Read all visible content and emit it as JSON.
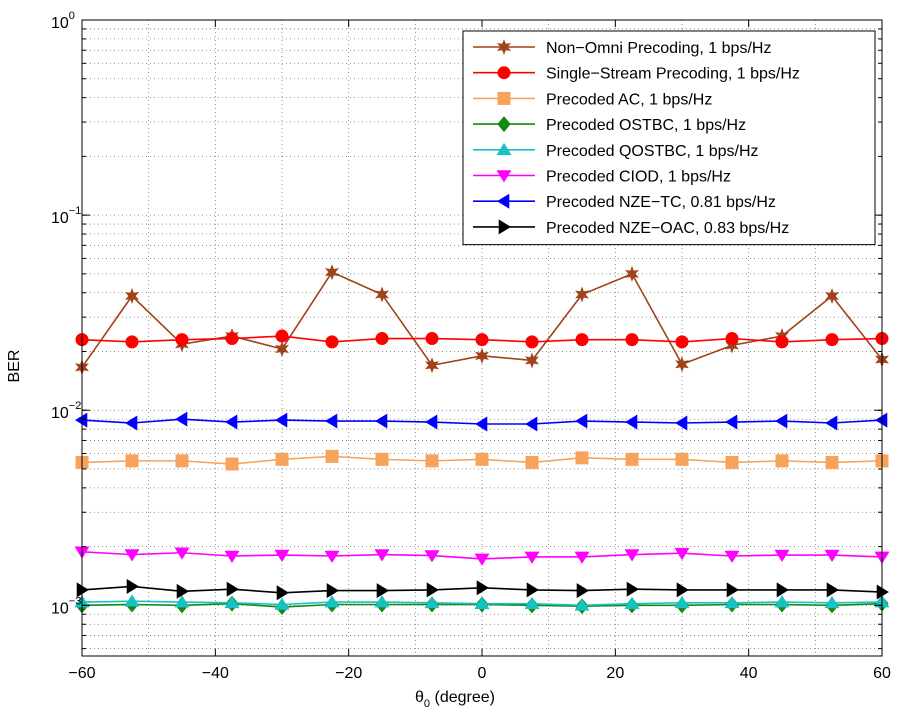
{
  "chart_data": {
    "type": "line",
    "xlabel_symbol": "θ",
    "xlabel_sub": "0",
    "xlabel_rest": " (degree)",
    "ylabel": "BER",
    "xlim": [
      -60,
      60
    ],
    "ylim": [
      0.00055,
      1
    ],
    "yscale": "log",
    "grid": true,
    "legend_position": "top-right",
    "xticks": [
      -60,
      -40,
      -20,
      0,
      20,
      40,
      60
    ],
    "xtick_labels": [
      "−60",
      "−40",
      "−20",
      "0",
      "20",
      "40",
      "60"
    ],
    "yticks": [
      {
        "value": 1,
        "base": "10",
        "exp": "0"
      },
      {
        "value": 0.1,
        "base": "10",
        "exp": "−1"
      },
      {
        "value": 0.01,
        "base": "10",
        "exp": "−2"
      },
      {
        "value": 0.001,
        "base": "10",
        "exp": "−3"
      }
    ],
    "x": [
      -60,
      -52.5,
      -45,
      -37.5,
      -30,
      -22.5,
      -15,
      -7.5,
      0,
      7.5,
      15,
      22.5,
      30,
      37.5,
      45,
      52.5,
      60
    ],
    "series": [
      {
        "name": "Non−Omni Precoding, 1 bps/Hz",
        "color": "#a0421a",
        "marker": "star",
        "values": [
          0.0166,
          0.0385,
          0.0218,
          0.024,
          0.0206,
          0.051,
          0.0392,
          0.017,
          0.019,
          0.018,
          0.0392,
          0.05,
          0.0172,
          0.0215,
          0.024,
          0.0385,
          0.0182
        ]
      },
      {
        "name": "Single−Stream Precoding, 1 bps/Hz",
        "color": "#ff0000",
        "marker": "circle",
        "values": [
          0.023,
          0.0224,
          0.023,
          0.0233,
          0.024,
          0.0224,
          0.0233,
          0.0233,
          0.023,
          0.0224,
          0.023,
          0.023,
          0.0224,
          0.0233,
          0.0224,
          0.023,
          0.0233
        ]
      },
      {
        "name": "Precoded AC, 1 bps/Hz",
        "color": "#f7a35c",
        "marker": "square",
        "values": [
          0.0054,
          0.0055,
          0.0055,
          0.0053,
          0.0056,
          0.0058,
          0.0056,
          0.0055,
          0.0056,
          0.0054,
          0.0057,
          0.0056,
          0.0056,
          0.0054,
          0.0055,
          0.0054,
          0.0055
        ]
      },
      {
        "name": "Precoded OSTBC, 1 bps/Hz",
        "color": "#138a13",
        "marker": "diamond",
        "values": [
          0.001,
          0.00101,
          0.001,
          0.00102,
          0.00098,
          0.00101,
          0.00101,
          0.00101,
          0.00101,
          0.001,
          0.00099,
          0.001,
          0.001,
          0.00101,
          0.00101,
          0.001,
          0.00102
        ]
      },
      {
        "name": "Precoded QOSTBC, 1 bps/Hz",
        "color": "#19c2c2",
        "marker": "triangle-up",
        "values": [
          0.00104,
          0.00105,
          0.00104,
          0.00103,
          0.00101,
          0.00104,
          0.00104,
          0.00103,
          0.00102,
          0.00102,
          0.001,
          0.00102,
          0.00103,
          0.00103,
          0.00104,
          0.00103,
          0.00104
        ]
      },
      {
        "name": "Precoded CIOD, 1 bps/Hz",
        "color": "#ff00ff",
        "marker": "triangle-down",
        "values": [
          0.00188,
          0.00182,
          0.00186,
          0.00179,
          0.00181,
          0.00179,
          0.00182,
          0.0018,
          0.00173,
          0.00177,
          0.00177,
          0.00182,
          0.00185,
          0.00179,
          0.00181,
          0.00181,
          0.00177
        ]
      },
      {
        "name": "Precoded NZE−TC, 0.81 bps/Hz",
        "color": "#0000ff",
        "marker": "triangle-left",
        "values": [
          0.0089,
          0.0086,
          0.009,
          0.0087,
          0.0089,
          0.0088,
          0.0088,
          0.0087,
          0.0085,
          0.0085,
          0.0088,
          0.0087,
          0.0086,
          0.0087,
          0.0088,
          0.0086,
          0.0089
        ]
      },
      {
        "name": "Precoded NZE−OAC, 0.83 bps/Hz",
        "color": "#000000",
        "marker": "triangle-right",
        "values": [
          0.0012,
          0.00125,
          0.00118,
          0.00121,
          0.00116,
          0.00119,
          0.00119,
          0.0012,
          0.00123,
          0.0012,
          0.00119,
          0.00121,
          0.0012,
          0.0012,
          0.0012,
          0.0012,
          0.00117
        ]
      }
    ]
  }
}
